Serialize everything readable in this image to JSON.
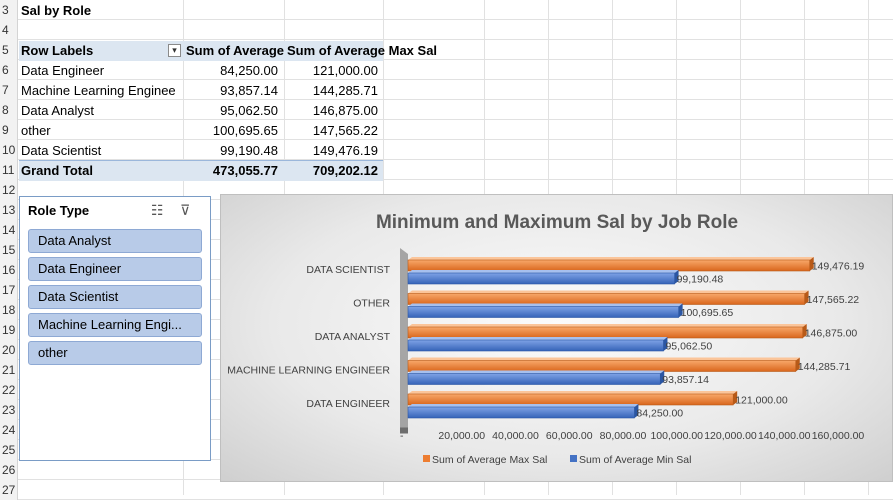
{
  "sheet": {
    "row_numbers": [
      "3",
      "4",
      "5",
      "6",
      "7",
      "8",
      "9",
      "10",
      "11",
      "12",
      "13",
      "14",
      "15",
      "16",
      "17",
      "18",
      "19",
      "20",
      "21",
      "22",
      "23",
      "24",
      "25",
      "26",
      "27"
    ],
    "title": "Sal by Role"
  },
  "pivot": {
    "headers": {
      "row_labels": "Row Labels",
      "col1": "Sum of Average",
      "col2": "Sum of Average Max Sal"
    },
    "rows": [
      {
        "label": "Data Engineer",
        "v1": "84,250.00",
        "v2": "121,000.00"
      },
      {
        "label": "Machine Learning Enginee",
        "v1": "93,857.14",
        "v2": "144,285.71"
      },
      {
        "label": "Data Analyst",
        "v1": "95,062.50",
        "v2": "146,875.00"
      },
      {
        "label": "other",
        "v1": "100,695.65",
        "v2": "147,565.22"
      },
      {
        "label": "Data Scientist",
        "v1": "99,190.48",
        "v2": "149,476.19"
      }
    ],
    "total": {
      "label": "Grand Total",
      "v1": "473,055.77",
      "v2": "709,202.12"
    }
  },
  "slicer": {
    "title": "Role Type",
    "items": [
      "Data Analyst",
      "Data Engineer",
      "Data Scientist",
      "Machine Learning Engi...",
      "other"
    ],
    "multi_select_icon": "multi-select-icon",
    "clear_filter_icon": "clear-filter-icon"
  },
  "chart_data": {
    "type": "bar",
    "orientation": "horizontal",
    "style": "3d-clustered",
    "title": "Minimum and Maximum Sal by Job Role",
    "categories": [
      "DATA SCIENTIST",
      "OTHER",
      "DATA ANALYST",
      "MACHINE LEARNING ENGINEER",
      "DATA ENGINEER"
    ],
    "series": [
      {
        "name": "Sum of Average Max Sal",
        "color": "#ed7d31",
        "values": [
          149476.19,
          147565.22,
          146875.0,
          144285.71,
          121000.0
        ],
        "labels": [
          "149,476.19",
          "147,565.22",
          "146,875.00",
          "144,285.71",
          "121,000.00"
        ]
      },
      {
        "name": "Sum of Average Min Sal",
        "color": "#4472c4",
        "values": [
          99190.48,
          100695.65,
          95062.5,
          93857.14,
          84250.0
        ],
        "labels": [
          "99,190.48",
          "100,695.65",
          "95,062.50",
          "93,857.14",
          "84,250.00"
        ]
      }
    ],
    "xlim": [
      0,
      160000
    ],
    "x_ticks": [
      "-",
      "20,000.00",
      "40,000.00",
      "60,000.00",
      "80,000.00",
      "100,000.00",
      "120,000.00",
      "140,000.00",
      "160,000.00"
    ],
    "legend_position": "bottom"
  }
}
